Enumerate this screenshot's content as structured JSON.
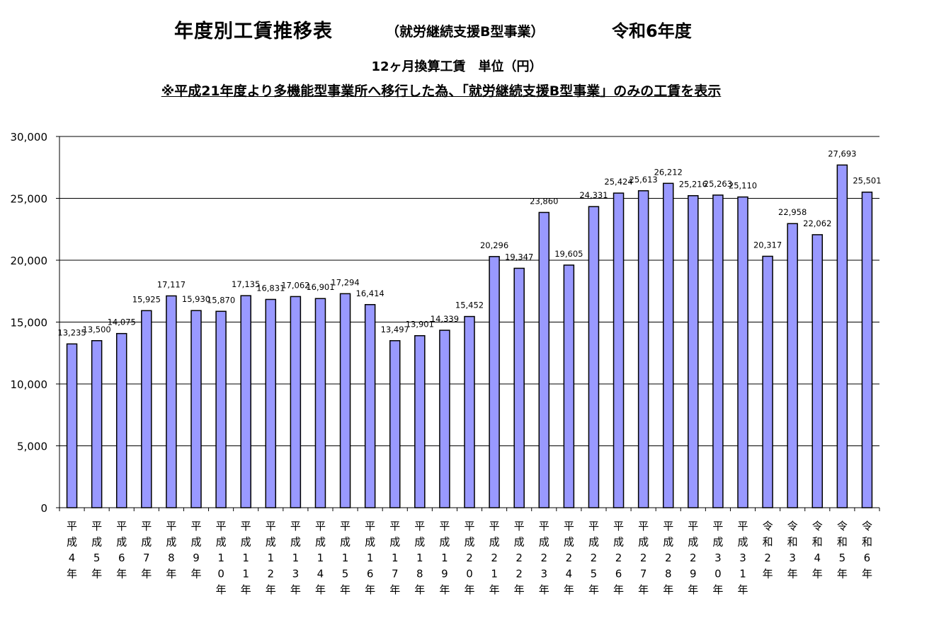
{
  "header": {
    "title_main": "年度別工賃推移表",
    "title_sub": "（就労継続支援B型事業）",
    "title_year": "令和6年度",
    "unit": "12ヶ月換算工賃　単位（円）",
    "note": "※平成21年度より多機能型事業所へ移行した為、「就労継続支援B型事業」のみの工賃を表示"
  },
  "chart_data": {
    "type": "bar",
    "categories": [
      "平成4年",
      "平成5年",
      "平成6年",
      "平成7年",
      "平成8年",
      "平成9年",
      "平成10年",
      "平成11年",
      "平成12年",
      "平成13年",
      "平成14年",
      "平成15年",
      "平成16年",
      "平成17年",
      "平成18年",
      "平成19年",
      "平成20年",
      "平成21年",
      "平成22年",
      "平成23年",
      "平成24年",
      "平成25年",
      "平成26年",
      "平成27年",
      "平成28年",
      "平成29年",
      "平成30年",
      "平成31年",
      "令和2年",
      "令和3年",
      "令和4年",
      "令和5年",
      "令和6年"
    ],
    "values": [
      13235,
      13500,
      14075,
      15925,
      17117,
      15930,
      15870,
      17135,
      16831,
      17062,
      16901,
      17294,
      16414,
      13497,
      13901,
      14339,
      15452,
      20296,
      19347,
      23860,
      19605,
      24331,
      25424,
      25613,
      26212,
      25216,
      25263,
      25110,
      20317,
      22958,
      22062,
      27693,
      25501
    ],
    "value_labels": [
      "13,235",
      "13,500",
      "14,075",
      "15,925",
      "17,117",
      "15,930",
      "15,870",
      "17,135",
      "16,831",
      "17,062",
      "16,901",
      "17,294",
      "16,414",
      "13,497",
      "13,901",
      "14,339",
      "15,452",
      "20,296",
      "19,347",
      "23,860",
      "19,605",
      "24,331",
      "25,424",
      "25,613",
      "26,212",
      "25,216",
      "25,263",
      "25,110",
      "20,317",
      "22,958",
      "22,062",
      "27,693",
      "25,501"
    ],
    "ylim": [
      0,
      30000
    ],
    "yticks": [
      0,
      5000,
      10000,
      15000,
      20000,
      25000,
      30000
    ],
    "ytick_labels": [
      "0",
      "5,000",
      "10,000",
      "15,000",
      "20,000",
      "25,000",
      "30,000"
    ],
    "grid": true,
    "bar_color": "#9999ff",
    "bar_edge_color": "#000000"
  }
}
